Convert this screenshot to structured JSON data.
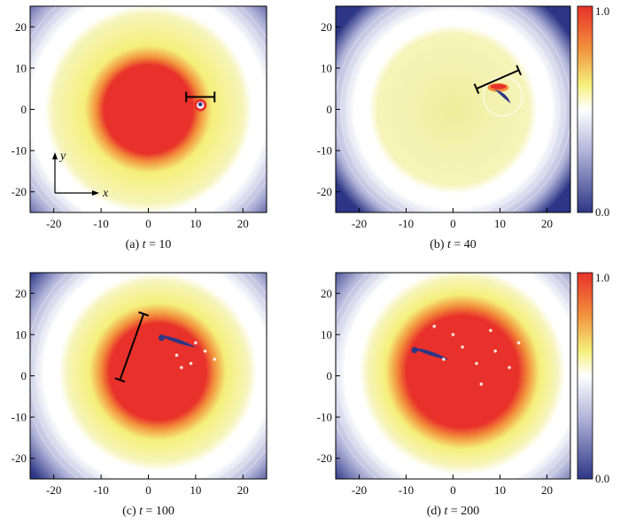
{
  "chart_data": [
    {
      "type": "heatmap",
      "caption": "(a) t = 10",
      "caption_prefix": "(a) ",
      "caption_var": "t",
      "caption_eq": " = 10",
      "xlim": [
        -25,
        25
      ],
      "ylim": [
        -25,
        25
      ],
      "xticks": [
        -20,
        -10,
        0,
        10,
        20
      ],
      "yticks": [
        -20,
        -10,
        0,
        10,
        20
      ],
      "xtick_labels": [
        "-20",
        "-10",
        "0",
        "10",
        "20"
      ],
      "ytick_labels": [
        "-20",
        "-10",
        "0",
        "10",
        "20"
      ],
      "axis_glyphs": {
        "x": "x",
        "y": "y"
      },
      "scale_bar": {
        "x1": 8,
        "y1": 3,
        "x2": 14,
        "y2": 3
      },
      "droplet": {
        "x": 11,
        "y": 1
      },
      "field": {
        "cx": 0,
        "cy": 0,
        "r_core": 11,
        "r_yellow": 20,
        "r_white": 23,
        "core_value": 0.9
      }
    },
    {
      "type": "heatmap",
      "caption": "(b) t = 40",
      "caption_prefix": "(b) ",
      "caption_var": "t",
      "caption_eq": " = 40",
      "xlim": [
        -25,
        25
      ],
      "ylim": [
        -25,
        25
      ],
      "xticks": [
        -20,
        -10,
        0,
        10,
        20
      ],
      "yticks": [
        -20,
        -10,
        0,
        10,
        20
      ],
      "xtick_labels": [
        "-20",
        "-10",
        "0",
        "10",
        "20"
      ],
      "ytick_labels": [
        "-20",
        "-10",
        "0",
        "10",
        "20"
      ],
      "scale_bar": {
        "x1": 5,
        "y1": 5,
        "x2": 14,
        "y2": 9.5
      },
      "droplet": {
        "x": 10,
        "y": 4
      },
      "field": {
        "cx": 0,
        "cy": 0,
        "r_core": 0,
        "r_yellow": 16,
        "r_white": 19,
        "core_value": 0.6
      },
      "colorbar": {
        "min": 0.0,
        "max": 1.0,
        "min_label": "0.0",
        "max_label": "1.0"
      }
    },
    {
      "type": "heatmap",
      "caption": "(c) t = 100",
      "caption_prefix": "(c) ",
      "caption_var": "t",
      "caption_eq": " = 100",
      "xlim": [
        -25,
        25
      ],
      "ylim": [
        -25,
        25
      ],
      "xticks": [
        -20,
        -10,
        0,
        10,
        20
      ],
      "yticks": [
        -20,
        -10,
        0,
        10,
        20
      ],
      "xtick_labels": [
        "-20",
        "-10",
        "0",
        "10",
        "20"
      ],
      "ytick_labels": [
        "-20",
        "-10",
        "0",
        "10",
        "20"
      ],
      "scale_bar": {
        "x1": -6,
        "y1": -1,
        "x2": -1,
        "y2": 15
      },
      "droplet": {
        "x": 3,
        "y": 9
      },
      "field": {
        "cx": 2,
        "cy": 1,
        "r_core": 12,
        "r_yellow": 19,
        "r_white": 22,
        "core_value": 0.92
      }
    },
    {
      "type": "heatmap",
      "caption": "(d) t = 200",
      "caption_prefix": "(d) ",
      "caption_var": "t",
      "caption_eq": " = 200",
      "xlim": [
        -25,
        25
      ],
      "ylim": [
        -25,
        25
      ],
      "xticks": [
        -20,
        -10,
        0,
        10,
        20
      ],
      "yticks": [
        -20,
        -10,
        0,
        10,
        20
      ],
      "xtick_labels": [
        "-20",
        "-10",
        "0",
        "10",
        "20"
      ],
      "ytick_labels": [
        "-20",
        "-10",
        "0",
        "10",
        "20"
      ],
      "droplet": {
        "x": -8,
        "y": 6
      },
      "field": {
        "cx": 2,
        "cy": 1,
        "r_core": 14,
        "r_yellow": 20,
        "r_white": 23,
        "core_value": 0.95
      },
      "colorbar": {
        "min": 0.0,
        "max": 1.0,
        "min_label": "0.0",
        "max_label": "1.0"
      }
    }
  ],
  "colors": {
    "red": "#e8312a",
    "orange": "#f28f3b",
    "yellow": "#f5f07a",
    "pale_yellow": "#f4f2b0",
    "white": "#ffffff",
    "lavender": "#b3b6da",
    "navy": "#2d3686"
  }
}
